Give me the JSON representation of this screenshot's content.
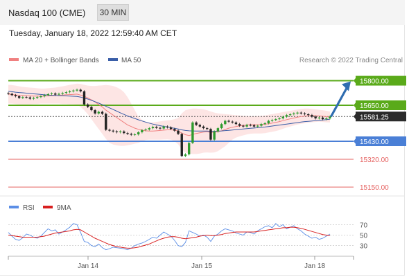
{
  "header": {
    "title": "Nasdaq 100 (CME)",
    "interval_label": "30 MIN"
  },
  "timestamp": "Tuesday, January 18, 2022 12:59:40 AM CET",
  "colors": {
    "support": "#4a7fd6",
    "resistance": "#5aaa1a",
    "target": "#e5605f",
    "arrow": "#2f6db0",
    "ma20": "#f08080",
    "ma50": "#3a5ea8",
    "bollinger_fill": "#fde0df",
    "candle_up": "#2e9b2e",
    "candle_down": "#222222",
    "rsi": "#5b8ee6",
    "rsi_ma": "#d81f1f"
  },
  "chart_data": [
    {
      "type": "candlestick",
      "legend": [
        "MA 20 + Bollinger Bands",
        "MA 50"
      ],
      "legend_placement": "top-left",
      "attribution": "Research © 2022 Trading Central",
      "x_tick_labels": [
        "Jan 14",
        "Jan 15",
        "Jan 18"
      ],
      "price_range": [
        15100,
        15870
      ],
      "current_price": 15581.25,
      "levels": [
        {
          "value": 15800.0,
          "label": "15800.00",
          "kind": "resistance"
        },
        {
          "value": 15650.0,
          "label": "15650.00",
          "kind": "resistance"
        },
        {
          "value": 15430.0,
          "label": "15430.00",
          "kind": "support"
        },
        {
          "value": 15320.0,
          "label": "15320.00",
          "kind": "target"
        },
        {
          "value": 15150.0,
          "label": "15150.00",
          "kind": "target"
        }
      ],
      "current_label": "15581.25",
      "forecast_arrow": {
        "from": 15585,
        "to": 15800,
        "direction": "up"
      },
      "closes": [
        15720,
        15712,
        15705,
        15695,
        15700,
        15698,
        15690,
        15695,
        15700,
        15705,
        15712,
        15718,
        15722,
        15715,
        15720,
        15725,
        15730,
        15735,
        15740,
        15745,
        15735,
        15655,
        15640,
        15620,
        15600,
        15610,
        15598,
        15500,
        15495,
        15490,
        15485,
        15490,
        15480,
        15475,
        15470,
        15472,
        15485,
        15498,
        15502,
        15510,
        15518,
        15512,
        15508,
        15520,
        15515,
        15505,
        15495,
        15475,
        15340,
        15350,
        15420,
        15545,
        15530,
        15520,
        15510,
        15505,
        15440,
        15490,
        15510,
        15535,
        15555,
        15550,
        15545,
        15535,
        15525,
        15520,
        15530,
        15528,
        15520,
        15525,
        15535,
        15540,
        15555,
        15560,
        15565,
        15570,
        15580,
        15590,
        15595,
        15600,
        15605,
        15600,
        15595,
        15590,
        15580,
        15570,
        15575,
        15565,
        15570,
        15581
      ],
      "ma20": [
        15718,
        15716,
        15713,
        15711,
        15710,
        15708,
        15707,
        15706,
        15706,
        15705,
        15706,
        15707,
        15708,
        15709,
        15711,
        15712,
        15714,
        15715,
        15717,
        15718,
        15712,
        15705,
        15695,
        15683,
        15670,
        15655,
        15640,
        15620,
        15605,
        15590,
        15575,
        15560,
        15545,
        15530,
        15520,
        15510,
        15503,
        15498,
        15494,
        15492,
        15492,
        15494,
        15496,
        15498,
        15500,
        15500,
        15498,
        15492,
        15480,
        15470,
        15465,
        15472,
        15478,
        15482,
        15486,
        15488,
        15484,
        15485,
        15488,
        15494,
        15502,
        15510,
        15516,
        15520,
        15524,
        15527,
        15530,
        15531,
        15531,
        15531,
        15532,
        15534,
        15537,
        15541,
        15545,
        15550,
        15556,
        15562,
        15567,
        15572,
        15577,
        15581,
        15584,
        15586,
        15587,
        15586,
        15585,
        15583,
        15580,
        15578
      ],
      "ma50": [
        15735,
        15733,
        15730,
        15728,
        15726,
        15724,
        15722,
        15720,
        15718,
        15716,
        15714,
        15712,
        15711,
        15710,
        15709,
        15708,
        15707,
        15706,
        15705,
        15704,
        15700,
        15694,
        15688,
        15680,
        15672,
        15663,
        15654,
        15644,
        15634,
        15624,
        15614,
        15604,
        15594,
        15585,
        15577,
        15569,
        15561,
        15554,
        15547,
        15541,
        15535,
        15530,
        15525,
        15521,
        15517,
        15513,
        15509,
        15505,
        15500,
        15496,
        15494,
        15493,
        15492,
        15492,
        15492,
        15492,
        15491,
        15491,
        15492,
        15493,
        15495,
        15497,
        15499,
        15501,
        15503,
        15505,
        15507,
        15509,
        15511,
        15513,
        15515,
        15517,
        15520,
        15523,
        15526,
        15529,
        15532,
        15535,
        15538,
        15541,
        15544,
        15547,
        15550,
        15552,
        15554,
        15556,
        15558,
        15560,
        15562,
        15565
      ],
      "bb_upper": [
        15775,
        15773,
        15770,
        15766,
        15762,
        15760,
        15758,
        15756,
        15754,
        15752,
        15752,
        15754,
        15756,
        15758,
        15762,
        15766,
        15770,
        15775,
        15778,
        15782,
        15780,
        15775,
        15770,
        15768,
        15768,
        15770,
        15772,
        15774,
        15772,
        15768,
        15760,
        15748,
        15730,
        15700,
        15660,
        15620,
        15580,
        15560,
        15550,
        15545,
        15545,
        15548,
        15552,
        15555,
        15558,
        15560,
        15565,
        15572,
        15600,
        15620,
        15625,
        15630,
        15630,
        15628,
        15625,
        15620,
        15612,
        15605,
        15600,
        15598,
        15596,
        15594,
        15592,
        15590,
        15588,
        15586,
        15585,
        15584,
        15584,
        15585,
        15586,
        15588,
        15592,
        15596,
        15600,
        15604,
        15608,
        15612,
        15616,
        15620,
        15624,
        15628,
        15630,
        15630,
        15628,
        15625,
        15622,
        15620,
        15616,
        15612
      ],
      "bb_lower": [
        15660,
        15660,
        15658,
        15656,
        15656,
        15656,
        15656,
        15658,
        15658,
        15660,
        15660,
        15660,
        15660,
        15660,
        15660,
        15658,
        15658,
        15656,
        15656,
        15654,
        15640,
        15620,
        15595,
        15565,
        15535,
        15505,
        15475,
        15445,
        15420,
        15410,
        15405,
        15402,
        15402,
        15405,
        15410,
        15415,
        15420,
        15430,
        15438,
        15440,
        15440,
        15440,
        15440,
        15441,
        15442,
        15440,
        15430,
        15412,
        15380,
        15360,
        15355,
        15352,
        15352,
        15355,
        15360,
        15362,
        15360,
        15362,
        15370,
        15385,
        15400,
        15420,
        15440,
        15452,
        15460,
        15466,
        15472,
        15476,
        15478,
        15478,
        15478,
        15480,
        15484,
        15488,
        15492,
        15498,
        15506,
        15514,
        15520,
        15526,
        15532,
        15536,
        15540,
        15544,
        15546,
        15548,
        15550,
        15548,
        15546,
        15545
      ]
    },
    {
      "type": "line",
      "legend": [
        "RSI",
        "9MA"
      ],
      "legend_placement": "top-left",
      "y_ticks": [
        70,
        50,
        30
      ],
      "ylim": [
        15,
        85
      ],
      "rsi": [
        55,
        48,
        42,
        40,
        45,
        52,
        50,
        46,
        44,
        48,
        55,
        62,
        58,
        60,
        52,
        56,
        60,
        65,
        72,
        70,
        55,
        38,
        36,
        30,
        28,
        33,
        26,
        22,
        24,
        27,
        26,
        25,
        24,
        22,
        25,
        30,
        33,
        35,
        38,
        42,
        46,
        44,
        50,
        56,
        52,
        48,
        40,
        30,
        28,
        36,
        58,
        55,
        52,
        48,
        50,
        46,
        38,
        48,
        52,
        58,
        62,
        60,
        58,
        54,
        52,
        50,
        56,
        55,
        52,
        58,
        62,
        66,
        68,
        64,
        72,
        66,
        70,
        62,
        65,
        68,
        62,
        58,
        52,
        48,
        44,
        46,
        42,
        44,
        48,
        52
      ],
      "rsi_ma": [
        50,
        49,
        48,
        47,
        46,
        46,
        46,
        46,
        46,
        47,
        48,
        50,
        52,
        54,
        55,
        56,
        57,
        58,
        60,
        61,
        60,
        56,
        52,
        48,
        44,
        41,
        38,
        35,
        32,
        30,
        28,
        27,
        26,
        25,
        25,
        26,
        27,
        29,
        31,
        33,
        36,
        39,
        42,
        44,
        46,
        47,
        47,
        46,
        44,
        43,
        44,
        45,
        46,
        48,
        49,
        50,
        49,
        49,
        50,
        51,
        53,
        54,
        55,
        56,
        56,
        56,
        56,
        56,
        56,
        57,
        58,
        59,
        60,
        61,
        62,
        63,
        64,
        64,
        65,
        65,
        64,
        63,
        61,
        59,
        57,
        55,
        53,
        51,
        50,
        49
      ]
    }
  ]
}
